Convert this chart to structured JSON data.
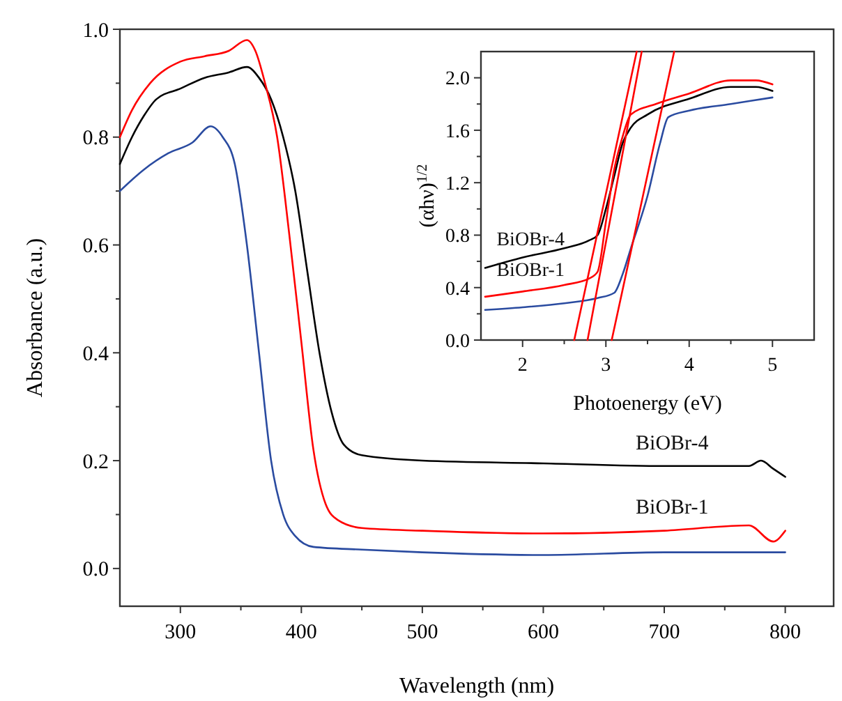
{
  "chart_data": [
    {
      "type": "line",
      "xlabel": "Wavelength (nm)",
      "ylabel": "Absorbance (a.u.)",
      "xlim": [
        250,
        840
      ],
      "ylim": [
        -0.07,
        1.0
      ],
      "xticks": [
        300,
        {
          "value": 350,
          "label": null
        },
        400,
        {
          "value": 450,
          "label": null
        },
        500,
        {
          "value": 550,
          "label": null
        },
        600,
        {
          "value": 650,
          "label": null
        },
        700,
        {
          "value": 750,
          "label": null
        },
        800
      ],
      "yticks": [
        {
          "value": 0,
          "label": "0.0"
        },
        {
          "value": 0.1,
          "label": null
        },
        {
          "value": 0.2,
          "label": "0.2"
        },
        {
          "value": 0.3,
          "label": null
        },
        {
          "value": 0.4,
          "label": "0.4"
        },
        {
          "value": 0.5,
          "label": null
        },
        {
          "value": 0.6,
          "label": "0.6"
        },
        {
          "value": 0.7,
          "label": null
        },
        {
          "value": 0.8,
          "label": "0.8"
        },
        {
          "value": 0.9,
          "label": null
        },
        {
          "value": 1.0,
          "label": "1.0"
        }
      ],
      "series": [
        {
          "name": "BiOBr-4",
          "color": "#000000",
          "x": [
            250,
            260,
            270,
            280,
            300,
            320,
            340,
            355,
            365,
            375,
            385,
            395,
            405,
            415,
            425,
            435,
            450,
            500,
            600,
            700,
            750,
            770,
            780,
            790,
            800
          ],
          "values": [
            0.75,
            0.8,
            0.84,
            0.87,
            0.89,
            0.91,
            0.92,
            0.93,
            0.91,
            0.87,
            0.8,
            0.7,
            0.55,
            0.4,
            0.29,
            0.23,
            0.21,
            0.2,
            0.195,
            0.19,
            0.19,
            0.19,
            0.2,
            0.185,
            0.17
          ]
        },
        {
          "name": "BiOBr-1",
          "color": "#ff0000",
          "x": [
            250,
            260,
            275,
            300,
            320,
            340,
            355,
            362,
            370,
            380,
            390,
            400,
            410,
            420,
            430,
            450,
            500,
            600,
            700,
            770,
            790,
            800
          ],
          "values": [
            0.8,
            0.85,
            0.9,
            0.94,
            0.95,
            0.96,
            0.98,
            0.96,
            0.9,
            0.8,
            0.62,
            0.42,
            0.22,
            0.12,
            0.09,
            0.075,
            0.07,
            0.065,
            0.07,
            0.08,
            0.05,
            0.07
          ]
        },
        {
          "color": "#2a4ba0",
          "x": [
            250,
            270,
            290,
            310,
            325,
            335,
            345,
            355,
            365,
            375,
            385,
            395,
            410,
            450,
            500,
            600,
            700,
            800
          ],
          "values": [
            0.7,
            0.74,
            0.77,
            0.79,
            0.82,
            0.8,
            0.75,
            0.6,
            0.4,
            0.2,
            0.1,
            0.06,
            0.04,
            0.035,
            0.03,
            0.025,
            0.03,
            0.03
          ]
        }
      ]
    },
    {
      "type": "line",
      "xlabel": "Photoenergy (eV)",
      "ylabel": "(αhν)$^{1/2}$",
      "xlim": [
        1.5,
        5.5
      ],
      "ylim": [
        0,
        2.2
      ],
      "xticks": [
        2,
        {
          "value": 2.5,
          "label": null
        },
        3,
        {
          "value": 3.5,
          "label": null
        },
        4,
        {
          "value": 4.5,
          "label": null
        },
        5
      ],
      "yticks": [
        {
          "value": 0,
          "label": "0.0"
        },
        {
          "value": 0.2,
          "label": null
        },
        {
          "value": 0.4,
          "label": "0.4"
        },
        {
          "value": 0.6,
          "label": null
        },
        {
          "value": 0.8,
          "label": "0.8"
        },
        {
          "value": 1.0,
          "label": null
        },
        {
          "value": 1.2,
          "label": "1.2"
        },
        {
          "value": 1.4,
          "label": null
        },
        {
          "value": 1.6,
          "label": "1.6"
        },
        {
          "value": 1.8,
          "label": null
        },
        {
          "value": 2.0,
          "label": "2.0"
        }
      ],
      "series": [
        {
          "name": "BiOBr-4",
          "color": "#000000",
          "x": [
            1.55,
            2.0,
            2.5,
            2.8,
            2.9,
            3.0,
            3.1,
            3.2,
            3.3,
            3.5,
            4.0,
            4.5,
            4.8,
            5.0
          ],
          "values": [
            0.55,
            0.63,
            0.7,
            0.76,
            0.8,
            1.0,
            1.25,
            1.5,
            1.62,
            1.72,
            1.84,
            1.93,
            1.93,
            1.9
          ]
        },
        {
          "name": "BiOBr-1",
          "color": "#ff0000",
          "x": [
            1.55,
            2.0,
            2.5,
            2.8,
            2.9,
            3.0,
            3.1,
            3.2,
            3.3,
            3.6,
            4.0,
            4.5,
            4.8,
            5.0
          ],
          "values": [
            0.33,
            0.37,
            0.42,
            0.47,
            0.52,
            0.9,
            1.3,
            1.55,
            1.72,
            1.8,
            1.88,
            1.98,
            1.98,
            1.95
          ]
        },
        {
          "color": "#2a4ba0",
          "x": [
            1.55,
            2.0,
            2.5,
            2.9,
            3.1,
            3.2,
            3.3,
            3.5,
            3.65,
            3.75,
            4.0,
            4.5,
            5.0
          ],
          "values": [
            0.23,
            0.25,
            0.28,
            0.32,
            0.36,
            0.5,
            0.7,
            1.1,
            1.5,
            1.7,
            1.75,
            1.8,
            1.85
          ]
        },
        {
          "type": "line",
          "color": "#ff0000",
          "x": [
            2.62,
            3.37
          ],
          "values": [
            0,
            2.2
          ]
        },
        {
          "type": "line",
          "color": "#ff0000",
          "x": [
            2.78,
            3.43
          ],
          "values": [
            0,
            2.2
          ]
        },
        {
          "type": "line",
          "color": "#ff0000",
          "x": [
            3.07,
            3.82
          ],
          "values": [
            0,
            2.2
          ]
        }
      ]
    }
  ]
}
